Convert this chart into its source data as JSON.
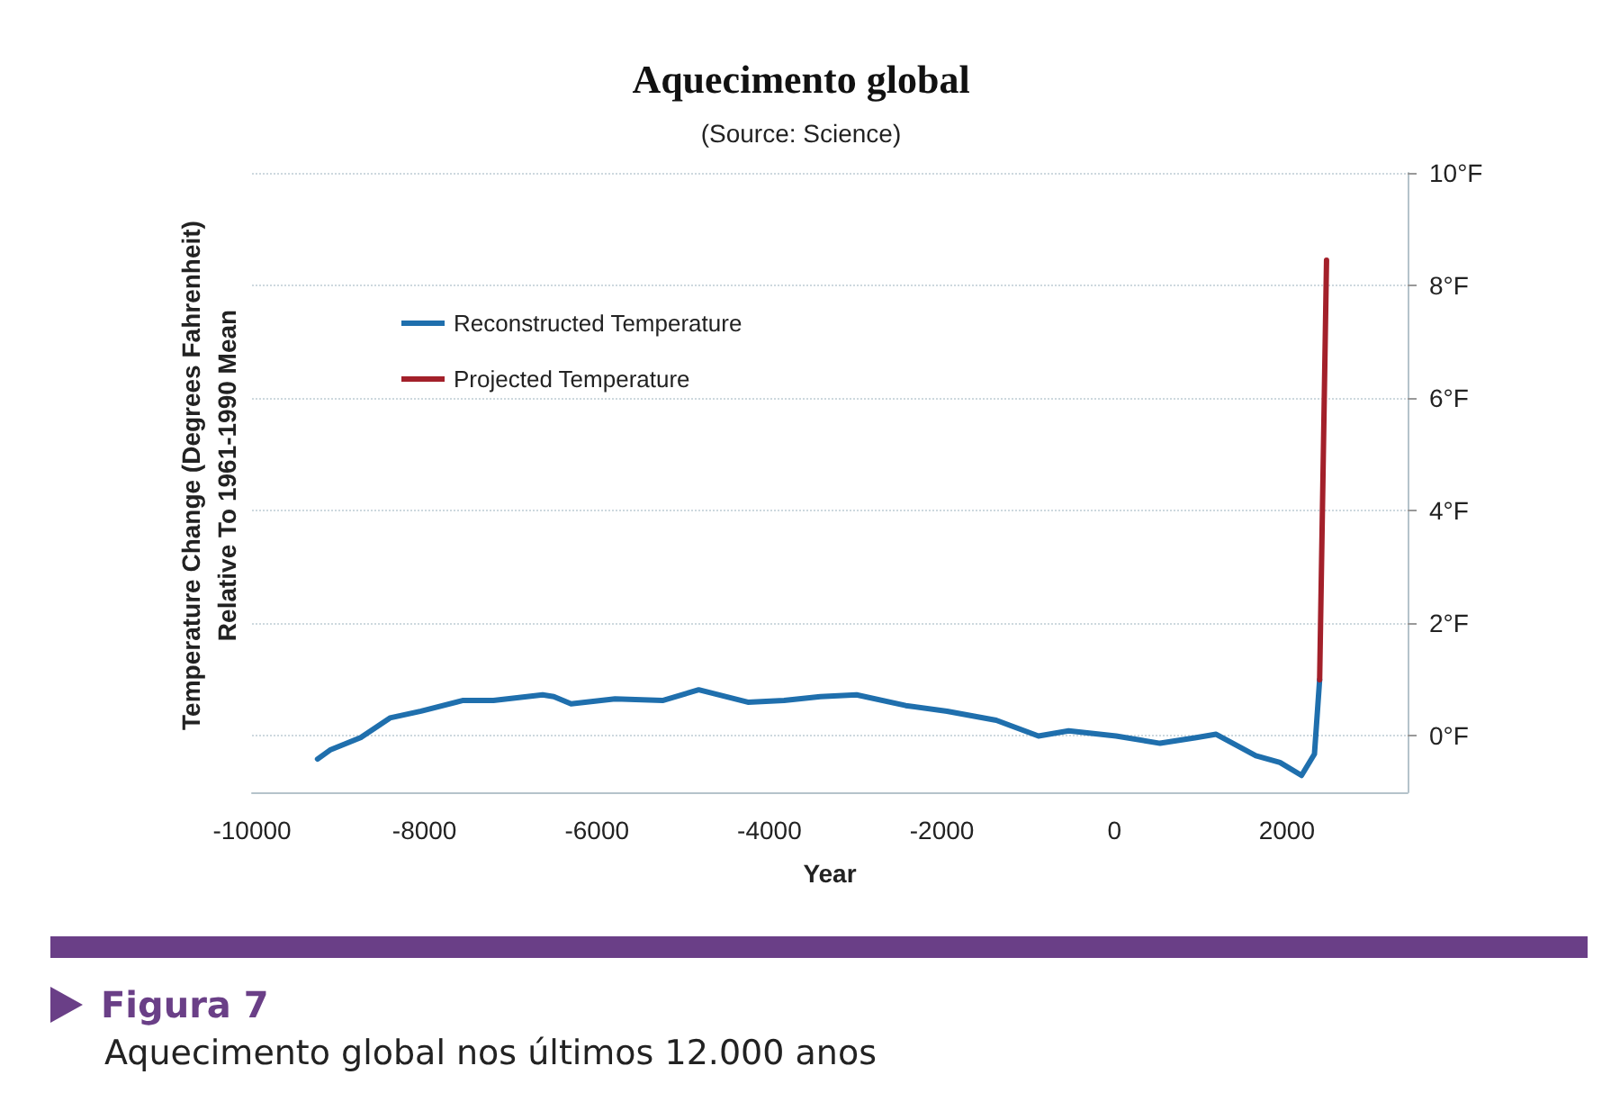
{
  "chart_data": {
    "type": "line",
    "title": "Aquecimento global",
    "subtitle": "(Source: Science)",
    "xlabel": "Year",
    "ylabel": "Temperature Change (Degrees Fahrenheit)\nRelative To 1961-1990 Mean",
    "annotations": [
      "Figura 7",
      "Aquecimento global nos últimos 12.000 anos"
    ],
    "xlim": [
      -10000,
      3400
    ],
    "xticks": [
      -10000,
      -8000,
      -6000,
      -4000,
      -2000,
      0,
      2000
    ],
    "ylim": [
      -1,
      10
    ],
    "yticks": [
      {
        "value": 0,
        "label": "0°F"
      },
      {
        "value": 2,
        "label": "2°F"
      },
      {
        "value": 4,
        "label": "4°F"
      },
      {
        "value": 6,
        "label": "6°F"
      },
      {
        "value": 8,
        "label": "8°F"
      },
      {
        "value": 10,
        "label": "10°F"
      }
    ],
    "grid": "y",
    "legend": "top left",
    "marker": "none",
    "line_style": "solid",
    "series": [
      {
        "name": "Reconstructed Temperature",
        "color": "#1f6fad",
        "x": [
          -9240,
          -9095,
          -8740,
          -8400,
          -8040,
          -7560,
          -7200,
          -6630,
          -6500,
          -6300,
          -5790,
          -5240,
          -4820,
          -4250,
          -3830,
          -3410,
          -2990,
          -2420,
          -1940,
          -1370,
          -880,
          -530,
          20,
          530,
          950,
          1180,
          1640,
          1920,
          2170,
          2320,
          2380
        ],
        "values": [
          -0.41,
          -0.25,
          -0.03,
          0.32,
          0.44,
          0.63,
          0.63,
          0.73,
          0.7,
          0.57,
          0.66,
          0.63,
          0.82,
          0.6,
          0.63,
          0.7,
          0.73,
          0.54,
          0.44,
          0.28,
          0,
          0.09,
          0,
          -0.13,
          -0.03,
          0.03,
          -0.35,
          -0.47,
          -0.7,
          -0.32,
          1.0
        ]
      },
      {
        "name": "Projected Temperature",
        "color": "#a3202a",
        "x": [
          2380,
          2460
        ],
        "values": [
          1.0,
          8.45
        ]
      }
    ]
  }
}
